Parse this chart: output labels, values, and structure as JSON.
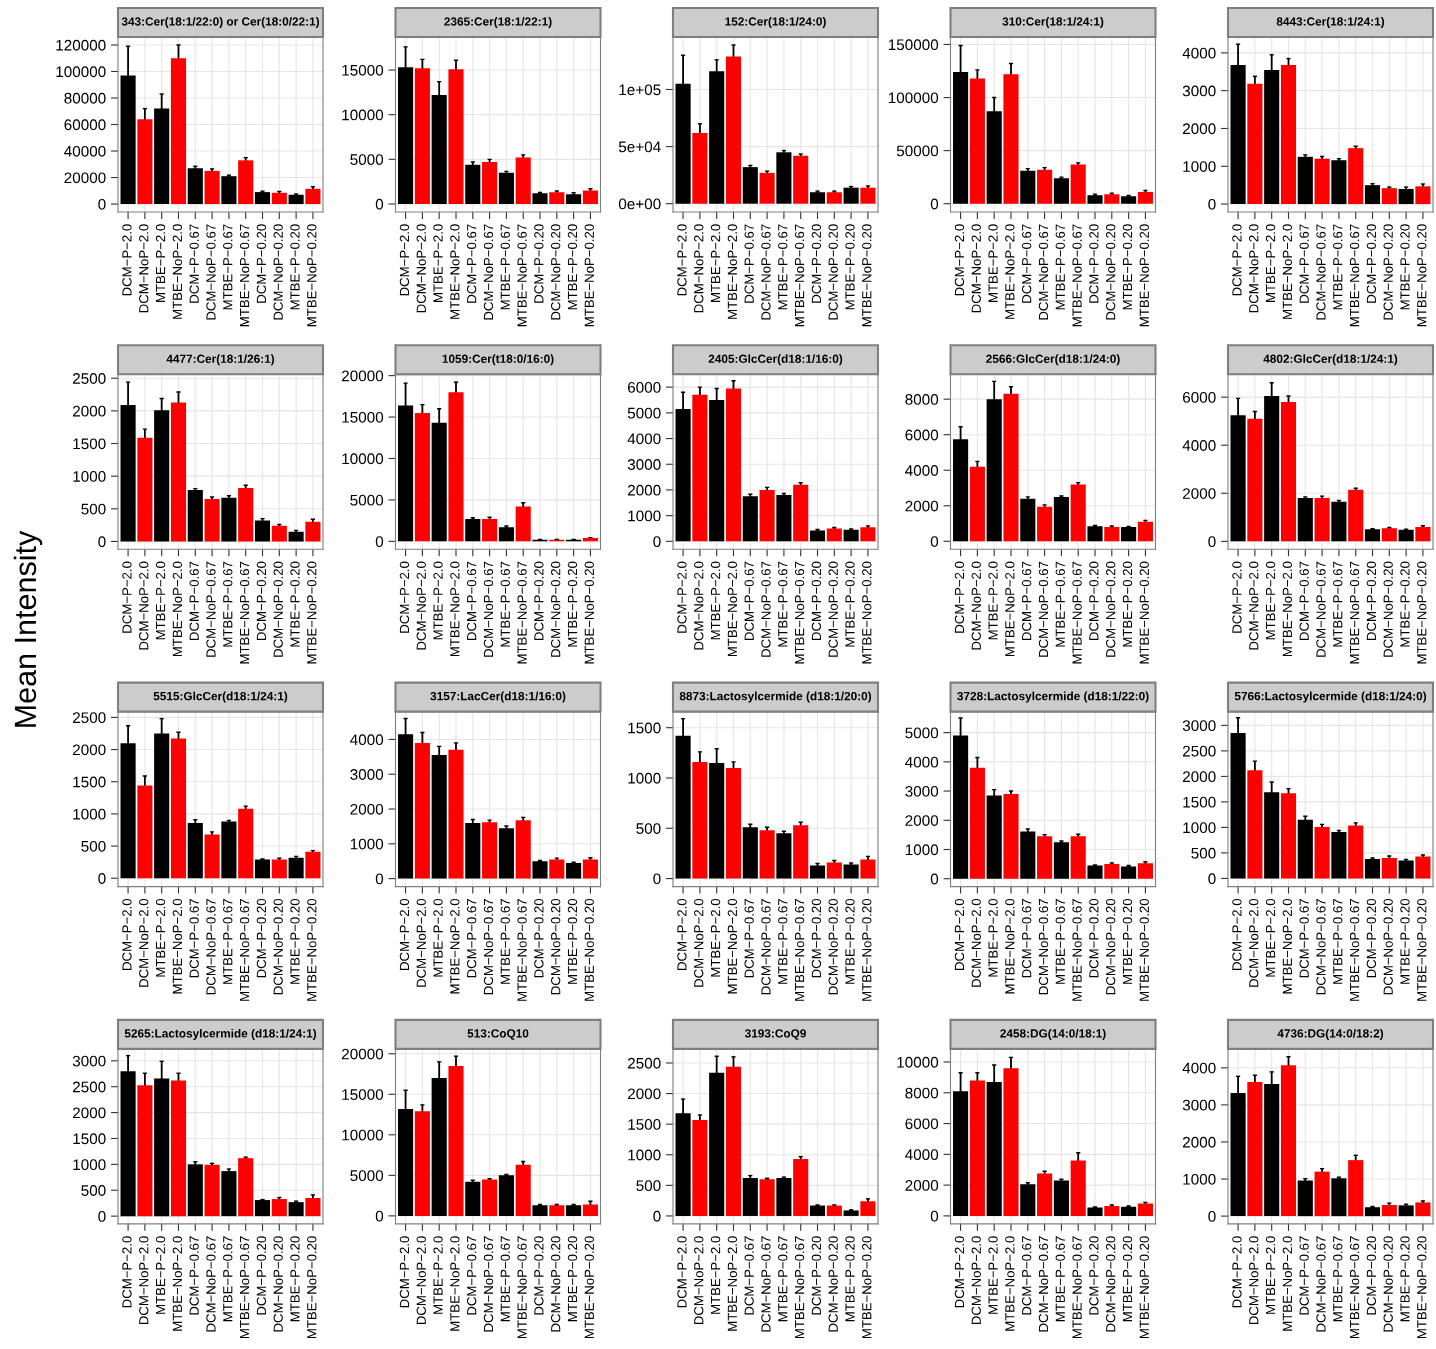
{
  "chart_data": [
    {
      "type": "bar",
      "title": "343:Cer(18:1/22:0) or Cer(18:0/22:1)",
      "categories": [
        "DCM−P−2.0",
        "DCM−NoP−2.0",
        "MTBE−P−2.0",
        "MTBE−NoP−2.0",
        "DCM−P−0.67",
        "DCM−NoP−0.67",
        "MTBE−P−0.67",
        "MTBE−NoP−0.67",
        "DCM−P−0.20",
        "DCM−NoP−0.20",
        "MTBE−P−0.20",
        "MTBE−NoP−0.20"
      ],
      "values": [
        97000,
        64000,
        72000,
        110000,
        27000,
        25000,
        21000,
        33000,
        9000,
        8500,
        7000,
        11500
      ],
      "errors": [
        22000,
        8000,
        11000,
        10000,
        1500,
        1500,
        800,
        2000,
        700,
        1000,
        600,
        1500
      ],
      "colors": [
        "#000000",
        "#ff0000",
        "#000000",
        "#ff0000",
        "#000000",
        "#ff0000",
        "#000000",
        "#ff0000",
        "#000000",
        "#ff0000",
        "#000000",
        "#ff0000"
      ],
      "ylim": [
        -6000,
        126000
      ],
      "yticks": [
        0,
        20000,
        40000,
        60000,
        80000,
        100000,
        120000
      ],
      "grid": true
    },
    {
      "type": "bar",
      "title": "2365:Cer(18:1/22:1)",
      "categories": [
        "DCM−P−2.0",
        "DCM−NoP−2.0",
        "MTBE−P−2.0",
        "MTBE−NoP−2.0",
        "DCM−P−0.67",
        "DCM−NoP−0.67",
        "MTBE−P−0.67",
        "MTBE−NoP−0.67",
        "DCM−P−0.20",
        "DCM−NoP−0.20",
        "MTBE−P−0.20",
        "MTBE−NoP−0.20"
      ],
      "values": [
        15300,
        15200,
        12200,
        15100,
        4400,
        4700,
        3500,
        5200,
        1200,
        1300,
        1100,
        1500
      ],
      "errors": [
        2300,
        1000,
        1500,
        1000,
        300,
        300,
        150,
        300,
        100,
        150,
        150,
        200
      ],
      "colors": [
        "#000000",
        "#ff0000",
        "#000000",
        "#ff0000",
        "#000000",
        "#ff0000",
        "#000000",
        "#ff0000",
        "#000000",
        "#ff0000",
        "#000000",
        "#ff0000"
      ],
      "ylim": [
        -900,
        18700
      ],
      "yticks": [
        0,
        5000,
        10000,
        15000
      ],
      "grid": true
    },
    {
      "type": "bar",
      "title": "152:Cer(18:1/24:0)",
      "categories": [
        "DCM−P−2.0",
        "DCM−NoP−2.0",
        "MTBE−P−2.0",
        "MTBE−NoP−2.0",
        "DCM−P−0.67",
        "DCM−NoP−0.67",
        "MTBE−P−0.67",
        "MTBE−NoP−0.67",
        "DCM−P−0.20",
        "DCM−NoP−0.20",
        "MTBE−P−0.20",
        "MTBE−NoP−0.20"
      ],
      "values": [
        105000,
        62000,
        116000,
        129000,
        32000,
        27000,
        45000,
        42000,
        10000,
        10000,
        14000,
        14000
      ],
      "errors": [
        25000,
        8000,
        10000,
        10000,
        1500,
        1500,
        1500,
        1500,
        1000,
        1000,
        1000,
        1500
      ],
      "colors": [
        "#000000",
        "#ff0000",
        "#000000",
        "#ff0000",
        "#000000",
        "#ff0000",
        "#000000",
        "#ff0000",
        "#000000",
        "#ff0000",
        "#000000",
        "#ff0000"
      ],
      "ylim": [
        -7300,
        146000
      ],
      "yticks": [
        {
          "value": 0,
          "label": "0e+00"
        },
        {
          "value": 50000,
          "label": "5e+04"
        },
        {
          "value": 100000,
          "label": "1e+05"
        }
      ],
      "grid": true
    },
    {
      "type": "bar",
      "title": "310:Cer(18:1/24:1)",
      "categories": [
        "DCM−P−2.0",
        "DCM−NoP−2.0",
        "MTBE−P−2.0",
        "MTBE−NoP−2.0",
        "DCM−P−0.67",
        "DCM−NoP−0.67",
        "MTBE−P−0.67",
        "MTBE−NoP−0.67",
        "DCM−P−0.20",
        "DCM−NoP−0.20",
        "MTBE−P−0.20",
        "MTBE−NoP−0.20"
      ],
      "values": [
        124000,
        118000,
        87000,
        122000,
        31000,
        32000,
        24000,
        37000,
        8000,
        9000,
        7000,
        11000
      ],
      "errors": [
        25000,
        8000,
        13000,
        10000,
        2000,
        2000,
        1000,
        1500,
        1000,
        1000,
        800,
        1500
      ],
      "colors": [
        "#000000",
        "#ff0000",
        "#000000",
        "#ff0000",
        "#000000",
        "#ff0000",
        "#000000",
        "#ff0000",
        "#000000",
        "#ff0000",
        "#000000",
        "#ff0000"
      ],
      "ylim": [
        -7800,
        157000
      ],
      "yticks": [
        0,
        50000,
        100000,
        150000
      ],
      "grid": true
    },
    {
      "type": "bar",
      "title": "8443:Cer(18:1/24:1)",
      "categories": [
        "DCM−P−2.0",
        "DCM−NoP−2.0",
        "MTBE−P−2.0",
        "MTBE−NoP−2.0",
        "DCM−P−0.67",
        "DCM−NoP−0.67",
        "MTBE−P−0.67",
        "MTBE−NoP−0.67",
        "DCM−P−0.20",
        "DCM−NoP−0.20",
        "MTBE−P−0.20",
        "MTBE−NoP−0.20"
      ],
      "values": [
        3680,
        3180,
        3550,
        3680,
        1250,
        1200,
        1160,
        1480,
        500,
        420,
        400,
        470
      ],
      "errors": [
        550,
        200,
        400,
        170,
        50,
        60,
        40,
        50,
        40,
        30,
        50,
        60
      ],
      "colors": [
        "#000000",
        "#ff0000",
        "#000000",
        "#ff0000",
        "#000000",
        "#ff0000",
        "#000000",
        "#ff0000",
        "#000000",
        "#ff0000",
        "#000000",
        "#ff0000"
      ],
      "ylim": [
        -210,
        4420
      ],
      "yticks": [
        0,
        1000,
        2000,
        3000,
        4000
      ],
      "grid": true
    },
    {
      "type": "bar",
      "title": "4477:Cer(18:1/26:1)",
      "annotations": [
        "Mean Intensity"
      ],
      "categories": [
        "DCM−P−2.0",
        "DCM−NoP−2.0",
        "MTBE−P−2.0",
        "MTBE−NoP−2.0",
        "DCM−P−0.67",
        "DCM−NoP−0.67",
        "MTBE−P−0.67",
        "MTBE−NoP−0.67",
        "DCM−P−0.20",
        "DCM−NoP−0.20",
        "MTBE−P−0.20",
        "MTBE−NoP−0.20"
      ],
      "values": [
        2090,
        1590,
        2010,
        2130,
        790,
        650,
        670,
        820,
        320,
        240,
        150,
        300
      ],
      "errors": [
        350,
        130,
        180,
        160,
        20,
        30,
        30,
        40,
        30,
        20,
        20,
        40
      ],
      "colors": [
        "#000000",
        "#ff0000",
        "#000000",
        "#ff0000",
        "#000000",
        "#ff0000",
        "#000000",
        "#ff0000",
        "#000000",
        "#ff0000",
        "#000000",
        "#ff0000"
      ],
      "ylim": [
        -120,
        2560
      ],
      "yticks": [
        0,
        500,
        1000,
        1500,
        2000,
        2500
      ],
      "grid": true
    },
    {
      "type": "bar",
      "title": "1059:Cer(t18:0/16:0)",
      "categories": [
        "DCM−P−2.0",
        "DCM−NoP−2.0",
        "MTBE−P−2.0",
        "MTBE−NoP−2.0",
        "DCM−P−0.67",
        "DCM−NoP−0.67",
        "MTBE−P−0.67",
        "MTBE−NoP−0.67",
        "DCM−P−0.20",
        "DCM−NoP−0.20",
        "MTBE−P−0.20",
        "MTBE−NoP−0.20"
      ],
      "values": [
        16400,
        15500,
        14300,
        18000,
        2700,
        2700,
        1700,
        4200,
        200,
        200,
        200,
        400
      ],
      "errors": [
        2700,
        1000,
        1700,
        1200,
        150,
        200,
        150,
        450,
        20,
        20,
        20,
        40
      ],
      "colors": [
        "#000000",
        "#ff0000",
        "#000000",
        "#ff0000",
        "#000000",
        "#ff0000",
        "#000000",
        "#ff0000",
        "#000000",
        "#ff0000",
        "#000000",
        "#ff0000"
      ],
      "ylim": [
        -960,
        20160
      ],
      "yticks": [
        0,
        5000,
        10000,
        15000,
        20000
      ],
      "grid": true
    },
    {
      "type": "bar",
      "title": "2405:GlcCer(d18:1/16:0)",
      "categories": [
        "DCM−P−2.0",
        "DCM−NoP−2.0",
        "MTBE−P−2.0",
        "MTBE−NoP−2.0",
        "DCM−P−0.67",
        "DCM−NoP−0.67",
        "MTBE−P−0.67",
        "MTBE−NoP−0.67",
        "DCM−P−0.20",
        "DCM−NoP−0.20",
        "MTBE−P−0.20",
        "MTBE−NoP−0.20"
      ],
      "values": [
        5150,
        5700,
        5500,
        5950,
        1750,
        2000,
        1800,
        2200,
        420,
        500,
        450,
        550
      ],
      "errors": [
        650,
        300,
        450,
        300,
        80,
        100,
        60,
        80,
        40,
        40,
        30,
        50
      ],
      "colors": [
        "#000000",
        "#ff0000",
        "#000000",
        "#ff0000",
        "#000000",
        "#ff0000",
        "#000000",
        "#ff0000",
        "#000000",
        "#ff0000",
        "#000000",
        "#ff0000"
      ],
      "ylim": [
        -310,
        6500
      ],
      "yticks": [
        0,
        1000,
        2000,
        3000,
        4000,
        5000,
        6000
      ],
      "grid": true
    },
    {
      "type": "bar",
      "title": "2566:GlcCer(d18:1/24:0)",
      "categories": [
        "DCM−P−2.0",
        "DCM−NoP−2.0",
        "MTBE−P−2.0",
        "MTBE−NoP−2.0",
        "DCM−P−0.67",
        "DCM−NoP−0.67",
        "MTBE−P−0.67",
        "MTBE−NoP−0.67",
        "DCM−P−0.20",
        "DCM−NoP−0.20",
        "MTBE−P−0.20",
        "MTBE−NoP−0.20"
      ],
      "values": [
        5750,
        4200,
        8000,
        8300,
        2400,
        1950,
        2500,
        3200,
        850,
        800,
        800,
        1100
      ],
      "errors": [
        700,
        300,
        1000,
        400,
        100,
        100,
        50,
        100,
        40,
        60,
        40,
        80
      ],
      "colors": [
        "#000000",
        "#ff0000",
        "#000000",
        "#ff0000",
        "#000000",
        "#ff0000",
        "#000000",
        "#ff0000",
        "#000000",
        "#ff0000",
        "#000000",
        "#ff0000"
      ],
      "ylim": [
        -450,
        9400
      ],
      "yticks": [
        0,
        2000,
        4000,
        6000,
        8000
      ],
      "grid": true
    },
    {
      "type": "bar",
      "title": "4802:GlcCer(d18:1/24:1)",
      "categories": [
        "DCM−P−2.0",
        "DCM−NoP−2.0",
        "MTBE−P−2.0",
        "MTBE−NoP−2.0",
        "DCM−P−0.67",
        "DCM−NoP−0.67",
        "MTBE−P−0.67",
        "MTBE−NoP−0.67",
        "DCM−P−0.20",
        "DCM−NoP−0.20",
        "MTBE−P−0.20",
        "MTBE−NoP−0.20"
      ],
      "values": [
        5250,
        5100,
        6050,
        5800,
        1800,
        1800,
        1650,
        2150,
        500,
        550,
        480,
        600
      ],
      "errors": [
        700,
        300,
        550,
        250,
        50,
        80,
        50,
        60,
        30,
        30,
        30,
        50
      ],
      "colors": [
        "#000000",
        "#ff0000",
        "#000000",
        "#ff0000",
        "#000000",
        "#ff0000",
        "#000000",
        "#ff0000",
        "#000000",
        "#ff0000",
        "#000000",
        "#ff0000"
      ],
      "ylim": [
        -330,
        6950
      ],
      "yticks": [
        0,
        2000,
        4000,
        6000
      ],
      "grid": true
    },
    {
      "type": "bar",
      "title": "5515:GlcCer(d18:1/24:1)",
      "categories": [
        "DCM−P−2.0",
        "DCM−NoP−2.0",
        "MTBE−P−2.0",
        "MTBE−NoP−2.0",
        "DCM−P−0.67",
        "DCM−NoP−0.67",
        "MTBE−P−0.67",
        "MTBE−NoP−0.67",
        "DCM−P−0.20",
        "DCM−NoP−0.20",
        "MTBE−P−0.20",
        "MTBE−NoP−0.20"
      ],
      "values": [
        2100,
        1440,
        2250,
        2170,
        860,
        680,
        880,
        1080,
        290,
        290,
        320,
        410
      ],
      "errors": [
        270,
        150,
        230,
        100,
        50,
        40,
        20,
        40,
        10,
        20,
        20,
        20
      ],
      "colors": [
        "#000000",
        "#ff0000",
        "#000000",
        "#ff0000",
        "#000000",
        "#ff0000",
        "#000000",
        "#ff0000",
        "#000000",
        "#ff0000",
        "#000000",
        "#ff0000"
      ],
      "ylim": [
        -130,
        2590
      ],
      "yticks": [
        0,
        500,
        1000,
        1500,
        2000,
        2500
      ],
      "grid": true
    },
    {
      "type": "bar",
      "title": "3157:LacCer(d18:1/16:0)",
      "categories": [
        "DCM−P−2.0",
        "DCM−NoP−2.0",
        "MTBE−P−2.0",
        "MTBE−NoP−2.0",
        "DCM−P−0.67",
        "DCM−NoP−0.67",
        "MTBE−P−0.67",
        "MTBE−NoP−0.67",
        "DCM−P−0.20",
        "DCM−NoP−0.20",
        "MTBE−P−0.20",
        "MTBE−NoP−0.20"
      ],
      "values": [
        4150,
        3900,
        3550,
        3700,
        1600,
        1620,
        1450,
        1680,
        500,
        550,
        450,
        550
      ],
      "errors": [
        450,
        300,
        250,
        200,
        100,
        60,
        60,
        80,
        20,
        40,
        20,
        50
      ],
      "colors": [
        "#000000",
        "#ff0000",
        "#000000",
        "#ff0000",
        "#000000",
        "#ff0000",
        "#000000",
        "#ff0000",
        "#000000",
        "#ff0000",
        "#000000",
        "#ff0000"
      ],
      "ylim": [
        -230,
        4800
      ],
      "yticks": [
        0,
        1000,
        2000,
        3000,
        4000
      ],
      "grid": true
    },
    {
      "type": "bar",
      "title": "8873:Lactosylcermide (d18:1/20:0)",
      "categories": [
        "DCM−P−2.0",
        "DCM−NoP−2.0",
        "MTBE−P−2.0",
        "MTBE−NoP−2.0",
        "DCM−P−0.67",
        "DCM−NoP−0.67",
        "MTBE−P−0.67",
        "MTBE−NoP−0.67",
        "DCM−P−0.20",
        "DCM−NoP−0.20",
        "MTBE−P−0.20",
        "MTBE−NoP−0.20"
      ],
      "values": [
        1420,
        1160,
        1150,
        1100,
        510,
        480,
        450,
        530,
        130,
        160,
        140,
        190
      ],
      "errors": [
        170,
        100,
        140,
        60,
        30,
        30,
        20,
        30,
        20,
        20,
        15,
        30
      ],
      "colors": [
        "#000000",
        "#ff0000",
        "#000000",
        "#ff0000",
        "#000000",
        "#ff0000",
        "#000000",
        "#ff0000",
        "#000000",
        "#ff0000",
        "#000000",
        "#ff0000"
      ],
      "ylim": [
        -80,
        1660
      ],
      "yticks": [
        0,
        500,
        1000,
        1500
      ],
      "grid": true
    },
    {
      "type": "bar",
      "title": "3728:Lactosylcermide (d18:1/22:0)",
      "categories": [
        "DCM−P−2.0",
        "DCM−NoP−2.0",
        "MTBE−P−2.0",
        "MTBE−NoP−2.0",
        "DCM−P−0.67",
        "DCM−NoP−0.67",
        "MTBE−P−0.67",
        "MTBE−NoP−0.67",
        "DCM−P−0.20",
        "DCM−NoP−0.20",
        "MTBE−P−0.20",
        "MTBE−NoP−0.20"
      ],
      "values": [
        4900,
        3800,
        2850,
        2900,
        1620,
        1450,
        1250,
        1450,
        450,
        500,
        420,
        530
      ],
      "errors": [
        600,
        350,
        200,
        100,
        80,
        60,
        40,
        70,
        20,
        40,
        30,
        50
      ],
      "colors": [
        "#000000",
        "#ff0000",
        "#000000",
        "#ff0000",
        "#000000",
        "#ff0000",
        "#000000",
        "#ff0000",
        "#000000",
        "#ff0000",
        "#000000",
        "#ff0000"
      ],
      "ylim": [
        -270,
        5720
      ],
      "yticks": [
        0,
        1000,
        2000,
        3000,
        4000,
        5000
      ],
      "grid": true
    },
    {
      "type": "bar",
      "title": "5766:Lactosylcermide (d18:1/24:0)",
      "categories": [
        "DCM−P−2.0",
        "DCM−NoP−2.0",
        "MTBE−P−2.0",
        "MTBE−NoP−2.0",
        "DCM−P−0.67",
        "DCM−NoP−0.67",
        "MTBE−P−0.67",
        "MTBE−NoP−0.67",
        "DCM−P−0.20",
        "DCM−NoP−0.20",
        "MTBE−P−0.20",
        "MTBE−NoP−0.20"
      ],
      "values": [
        2850,
        2120,
        1690,
        1670,
        1150,
        1010,
        910,
        1040,
        380,
        400,
        350,
        430
      ],
      "errors": [
        300,
        180,
        200,
        90,
        70,
        50,
        30,
        50,
        20,
        40,
        20,
        30
      ],
      "colors": [
        "#000000",
        "#ff0000",
        "#000000",
        "#ff0000",
        "#000000",
        "#ff0000",
        "#000000",
        "#ff0000",
        "#000000",
        "#ff0000",
        "#000000",
        "#ff0000"
      ],
      "ylim": [
        -160,
        3270
      ],
      "yticks": [
        0,
        500,
        1000,
        1500,
        2000,
        2500,
        3000
      ],
      "grid": true
    },
    {
      "type": "bar",
      "title": "5265:Lactosylcermide (d18:1/24:1)",
      "categories": [
        "DCM−P−2.0",
        "DCM−NoP−2.0",
        "MTBE−P−2.0",
        "MTBE−NoP−2.0",
        "DCM−P−0.67",
        "DCM−NoP−0.67",
        "MTBE−P−0.67",
        "MTBE−NoP−0.67",
        "DCM−P−0.20",
        "DCM−NoP−0.20",
        "MTBE−P−0.20",
        "MTBE−NoP−0.20"
      ],
      "values": [
        2800,
        2530,
        2660,
        2620,
        1000,
        990,
        870,
        1120,
        310,
        330,
        270,
        350
      ],
      "errors": [
        300,
        230,
        330,
        140,
        50,
        30,
        40,
        20,
        10,
        30,
        20,
        60
      ],
      "colors": [
        "#000000",
        "#ff0000",
        "#000000",
        "#ff0000",
        "#000000",
        "#ff0000",
        "#000000",
        "#ff0000",
        "#000000",
        "#ff0000",
        "#000000",
        "#ff0000"
      ],
      "ylim": [
        -150,
        3230
      ],
      "yticks": [
        0,
        500,
        1000,
        1500,
        2000,
        2500,
        3000
      ],
      "grid": true
    },
    {
      "type": "bar",
      "title": "513:CoQ10",
      "categories": [
        "DCM−P−2.0",
        "DCM−NoP−2.0",
        "MTBE−P−2.0",
        "MTBE−NoP−2.0",
        "DCM−P−0.67",
        "DCM−NoP−0.67",
        "MTBE−P−0.67",
        "MTBE−NoP−0.67",
        "DCM−P−0.20",
        "DCM−NoP−0.20",
        "MTBE−P−0.20",
        "MTBE−NoP−0.20"
      ],
      "values": [
        13200,
        12900,
        17000,
        18500,
        4200,
        4500,
        5000,
        6300,
        1300,
        1300,
        1300,
        1400
      ],
      "errors": [
        2300,
        800,
        2000,
        1200,
        200,
        100,
        100,
        400,
        100,
        100,
        100,
        400
      ],
      "colors": [
        "#000000",
        "#ff0000",
        "#000000",
        "#ff0000",
        "#000000",
        "#ff0000",
        "#000000",
        "#ff0000",
        "#000000",
        "#ff0000",
        "#000000",
        "#ff0000"
      ],
      "ylim": [
        -990,
        20600
      ],
      "yticks": [
        0,
        5000,
        10000,
        15000,
        20000
      ],
      "grid": true
    },
    {
      "type": "bar",
      "title": "3193:CoQ9",
      "categories": [
        "DCM−P−2.0",
        "DCM−NoP−2.0",
        "MTBE−P−2.0",
        "MTBE−NoP−2.0",
        "DCM−P−0.67",
        "DCM−NoP−0.67",
        "MTBE−P−0.67",
        "MTBE−NoP−0.67",
        "DCM−P−0.20",
        "DCM−NoP−0.20",
        "MTBE−P−0.20",
        "MTBE−NoP−0.20"
      ],
      "values": [
        1680,
        1570,
        2340,
        2440,
        620,
        600,
        620,
        930,
        170,
        170,
        90,
        240
      ],
      "errors": [
        230,
        80,
        270,
        160,
        40,
        15,
        15,
        40,
        10,
        10,
        10,
        40
      ],
      "colors": [
        "#000000",
        "#ff0000",
        "#000000",
        "#ff0000",
        "#000000",
        "#ff0000",
        "#000000",
        "#ff0000",
        "#000000",
        "#ff0000",
        "#000000",
        "#ff0000"
      ],
      "ylim": [
        -130,
        2730
      ],
      "yticks": [
        0,
        500,
        1000,
        1500,
        2000,
        2500
      ],
      "grid": true
    },
    {
      "type": "bar",
      "title": "2458:DG(14:0/18:1)",
      "categories": [
        "DCM−P−2.0",
        "DCM−NoP−2.0",
        "MTBE−P−2.0",
        "MTBE−NoP−2.0",
        "DCM−P−0.67",
        "DCM−NoP−0.67",
        "MTBE−P−0.67",
        "MTBE−NoP−0.67",
        "DCM−P−0.20",
        "DCM−NoP−0.20",
        "MTBE−P−0.20",
        "MTBE−NoP−0.20"
      ],
      "values": [
        8100,
        8800,
        8700,
        9600,
        2050,
        2750,
        2300,
        3600,
        550,
        650,
        600,
        800
      ],
      "errors": [
        1200,
        500,
        1100,
        700,
        100,
        150,
        80,
        500,
        30,
        60,
        40,
        80
      ],
      "colors": [
        "#000000",
        "#ff0000",
        "#000000",
        "#ff0000",
        "#000000",
        "#ff0000",
        "#000000",
        "#ff0000",
        "#000000",
        "#ff0000",
        "#000000",
        "#ff0000"
      ],
      "ylim": [
        -520,
        10850
      ],
      "yticks": [
        0,
        2000,
        4000,
        6000,
        8000,
        10000
      ],
      "grid": true
    },
    {
      "type": "bar",
      "title": "4736:DG(14:0/18:2)",
      "categories": [
        "DCM−P−2.0",
        "DCM−NoP−2.0",
        "MTBE−P−2.0",
        "MTBE−NoP−2.0",
        "DCM−P−0.67",
        "DCM−NoP−0.67",
        "MTBE−P−0.67",
        "MTBE−NoP−0.67",
        "DCM−P−0.20",
        "DCM−NoP−0.20",
        "MTBE−P−0.20",
        "MTBE−NoP−0.20"
      ],
      "values": [
        3320,
        3620,
        3560,
        4070,
        960,
        1200,
        1020,
        1510,
        240,
        300,
        290,
        370
      ],
      "errors": [
        450,
        180,
        330,
        230,
        50,
        80,
        30,
        130,
        20,
        50,
        30,
        40
      ],
      "colors": [
        "#000000",
        "#ff0000",
        "#000000",
        "#ff0000",
        "#000000",
        "#ff0000",
        "#000000",
        "#ff0000",
        "#000000",
        "#ff0000",
        "#000000",
        "#ff0000"
      ],
      "ylim": [
        -210,
        4510
      ],
      "yticks": [
        0,
        1000,
        2000,
        3000,
        4000
      ],
      "grid": true
    }
  ]
}
